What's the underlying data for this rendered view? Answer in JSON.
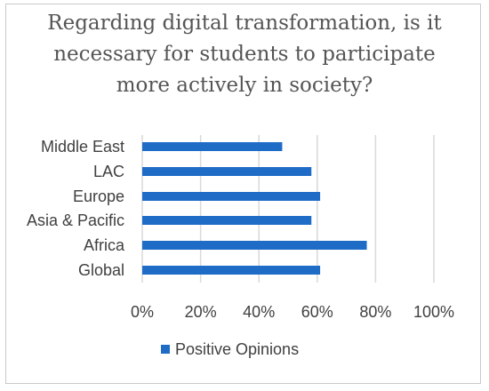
{
  "chart_data": {
    "type": "bar",
    "orientation": "horizontal",
    "title_lines": [
      "Regarding digital transformation, is it",
      "necessary for students to  participate",
      "more actively in society?"
    ],
    "categories": [
      "Global",
      "Africa",
      "Asia & Pacific",
      "Europe",
      "LAC",
      "Middle East"
    ],
    "series": [
      {
        "name": "Positive Opinions",
        "values": [
          61,
          77,
          58,
          61,
          58,
          48
        ]
      }
    ],
    "xlim": [
      0,
      100
    ],
    "x_ticks": [
      "0%",
      "20%",
      "40%",
      "60%",
      "80%",
      "100%"
    ],
    "grid": true,
    "legend_position": "bottom",
    "colors": {
      "bar": "#1f6cc6",
      "grid": "#d9d9d9",
      "title": "#555555"
    }
  }
}
